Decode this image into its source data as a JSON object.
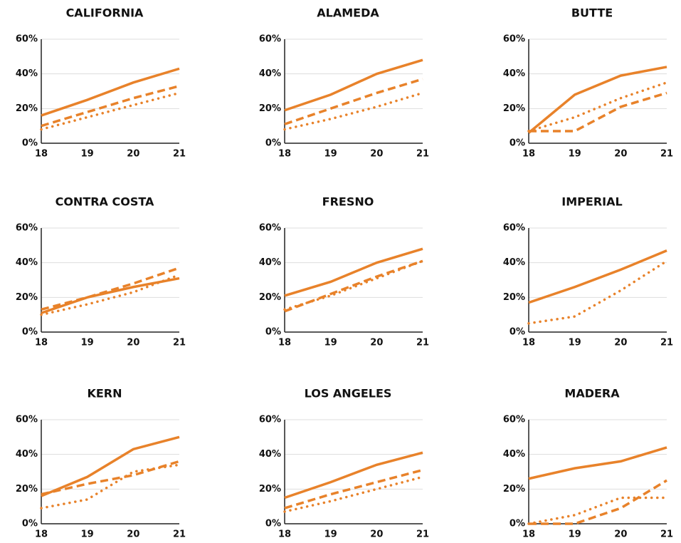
{
  "chart_data": [
    {
      "type": "line",
      "title": "CALIFORNIA",
      "categories": [
        "18",
        "19",
        "20",
        "21"
      ],
      "ylim": [
        0,
        60
      ],
      "yticks": [
        {
          "value": 0,
          "label": "0%"
        },
        {
          "value": 20,
          "label": "20%"
        },
        {
          "value": 40,
          "label": "40%"
        },
        {
          "value": 60,
          "label": "60%"
        }
      ],
      "grid": true,
      "series": [
        {
          "style": "solid",
          "color": "#e8822a",
          "values": [
            16,
            25,
            35,
            43
          ]
        },
        {
          "style": "dashed",
          "color": "#e8822a",
          "values": [
            10,
            18,
            26,
            33
          ]
        },
        {
          "style": "dotted",
          "color": "#e8822a",
          "values": [
            8,
            15,
            22,
            29
          ]
        }
      ]
    },
    {
      "type": "line",
      "title": "ALAMEDA",
      "categories": [
        "18",
        "19",
        "20",
        "21"
      ],
      "ylim": [
        0,
        60
      ],
      "yticks": [
        {
          "value": 0,
          "label": "0%"
        },
        {
          "value": 20,
          "label": "20%"
        },
        {
          "value": 40,
          "label": "40%"
        },
        {
          "value": 60,
          "label": "60%"
        }
      ],
      "grid": true,
      "series": [
        {
          "style": "solid",
          "color": "#e8822a",
          "values": [
            19,
            28,
            40,
            48
          ]
        },
        {
          "style": "dashed",
          "color": "#e8822a",
          "values": [
            11,
            20,
            29,
            37
          ]
        },
        {
          "style": "dotted",
          "color": "#e8822a",
          "values": [
            8,
            14,
            21,
            29
          ]
        }
      ]
    },
    {
      "type": "line",
      "title": "BUTTE",
      "categories": [
        "18",
        "19",
        "20",
        "21"
      ],
      "ylim": [
        0,
        60
      ],
      "yticks": [
        {
          "value": 0,
          "label": "0%"
        },
        {
          "value": 20,
          "label": "20%"
        },
        {
          "value": 40,
          "label": "40%"
        },
        {
          "value": 60,
          "label": "60%"
        }
      ],
      "grid": true,
      "series": [
        {
          "style": "solid",
          "color": "#e8822a",
          "values": [
            6,
            28,
            39,
            44
          ]
        },
        {
          "style": "dashed",
          "color": "#e8822a",
          "values": [
            7,
            7,
            21,
            29
          ]
        },
        {
          "style": "dotted",
          "color": "#e8822a",
          "values": [
            7,
            15,
            26,
            35
          ]
        }
      ]
    },
    {
      "type": "line",
      "title": "CONTRA COSTA",
      "categories": [
        "18",
        "19",
        "20",
        "21"
      ],
      "ylim": [
        0,
        60
      ],
      "yticks": [
        {
          "value": 0,
          "label": "0%"
        },
        {
          "value": 20,
          "label": "20%"
        },
        {
          "value": 40,
          "label": "40%"
        },
        {
          "value": 60,
          "label": "60%"
        }
      ],
      "grid": true,
      "series": [
        {
          "style": "solid",
          "color": "#e8822a",
          "values": [
            11,
            20,
            26,
            31
          ]
        },
        {
          "style": "dashed",
          "color": "#e8822a",
          "values": [
            13,
            20,
            28,
            37
          ]
        },
        {
          "style": "dotted",
          "color": "#e8822a",
          "values": [
            10,
            16,
            23,
            33
          ]
        }
      ]
    },
    {
      "type": "line",
      "title": "FRESNO",
      "categories": [
        "18",
        "19",
        "20",
        "21"
      ],
      "ylim": [
        0,
        60
      ],
      "yticks": [
        {
          "value": 0,
          "label": "0%"
        },
        {
          "value": 20,
          "label": "20%"
        },
        {
          "value": 40,
          "label": "40%"
        },
        {
          "value": 60,
          "label": "60%"
        }
      ],
      "grid": true,
      "series": [
        {
          "style": "solid",
          "color": "#e8822a",
          "values": [
            21,
            29,
            40,
            48
          ]
        },
        {
          "style": "dashed",
          "color": "#e8822a",
          "values": [
            12,
            22,
            32,
            41
          ]
        },
        {
          "style": "dotted",
          "color": "#e8822a",
          "values": [
            13,
            21,
            31,
            41
          ]
        }
      ]
    },
    {
      "type": "line",
      "title": "IMPERIAL",
      "categories": [
        "18",
        "19",
        "20",
        "21"
      ],
      "ylim": [
        0,
        60
      ],
      "yticks": [
        {
          "value": 0,
          "label": "0%"
        },
        {
          "value": 20,
          "label": "20%"
        },
        {
          "value": 40,
          "label": "40%"
        },
        {
          "value": 60,
          "label": "60%"
        }
      ],
      "grid": true,
      "series": [
        {
          "style": "solid",
          "color": "#e8822a",
          "values": [
            17,
            26,
            36,
            47
          ]
        },
        {
          "style": "dotted",
          "color": "#e8822a",
          "values": [
            5,
            9,
            24,
            41
          ]
        }
      ]
    },
    {
      "type": "line",
      "title": "KERN",
      "categories": [
        "18",
        "19",
        "20",
        "21"
      ],
      "ylim": [
        0,
        60
      ],
      "yticks": [
        {
          "value": 0,
          "label": "0%"
        },
        {
          "value": 20,
          "label": "20%"
        },
        {
          "value": 40,
          "label": "40%"
        },
        {
          "value": 60,
          "label": "60%"
        }
      ],
      "grid": true,
      "series": [
        {
          "style": "solid",
          "color": "#e8822a",
          "values": [
            16,
            27,
            43,
            50
          ]
        },
        {
          "style": "dashed",
          "color": "#e8822a",
          "values": [
            17,
            23,
            28,
            36
          ]
        },
        {
          "style": "dotted",
          "color": "#e8822a",
          "values": [
            9,
            14,
            30,
            34
          ]
        }
      ]
    },
    {
      "type": "line",
      "title": "LOS ANGELES",
      "categories": [
        "18",
        "19",
        "20",
        "21"
      ],
      "ylim": [
        0,
        60
      ],
      "yticks": [
        {
          "value": 0,
          "label": "0%"
        },
        {
          "value": 20,
          "label": "20%"
        },
        {
          "value": 40,
          "label": "40%"
        },
        {
          "value": 60,
          "label": "60%"
        }
      ],
      "grid": true,
      "series": [
        {
          "style": "solid",
          "color": "#e8822a",
          "values": [
            15,
            24,
            34,
            41
          ]
        },
        {
          "style": "dashed",
          "color": "#e8822a",
          "values": [
            9,
            17,
            24,
            31
          ]
        },
        {
          "style": "dotted",
          "color": "#e8822a",
          "values": [
            7,
            13,
            20,
            27
          ]
        }
      ]
    },
    {
      "type": "line",
      "title": "MADERA",
      "categories": [
        "18",
        "19",
        "20",
        "21"
      ],
      "ylim": [
        0,
        60
      ],
      "yticks": [
        {
          "value": 0,
          "label": "0%"
        },
        {
          "value": 20,
          "label": "20%"
        },
        {
          "value": 40,
          "label": "40%"
        },
        {
          "value": 60,
          "label": "60%"
        }
      ],
      "grid": true,
      "series": [
        {
          "style": "solid",
          "color": "#e8822a",
          "values": [
            26,
            32,
            36,
            44
          ]
        },
        {
          "style": "dashed",
          "color": "#e8822a",
          "values": [
            0,
            0,
            9,
            25
          ]
        },
        {
          "style": "dotted",
          "color": "#e8822a",
          "values": [
            0,
            5,
            15,
            15
          ]
        }
      ]
    }
  ]
}
